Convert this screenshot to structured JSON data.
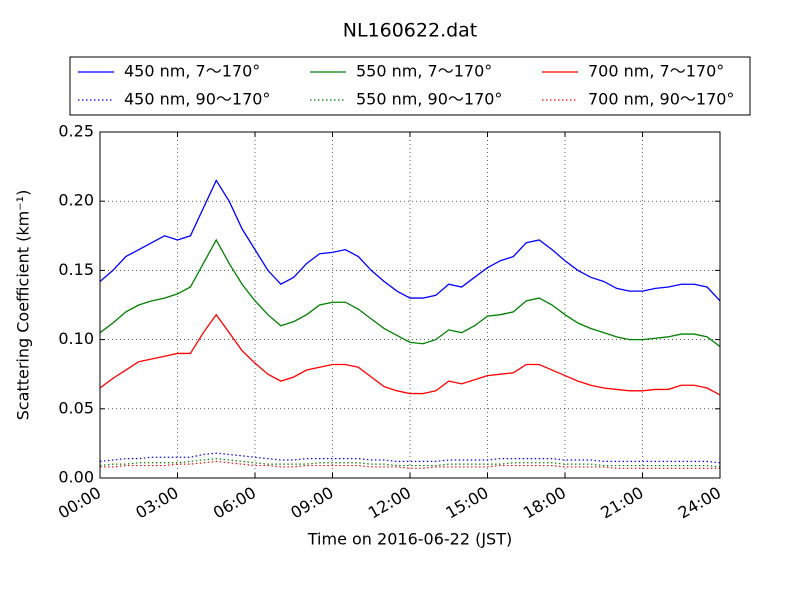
{
  "chart_data": {
    "type": "line",
    "title": "NL160622.dat",
    "xlabel": "Time on 2016-06-22 (JST)",
    "ylabel": "Scattering Coefficient (km⁻¹)",
    "x": [
      0,
      0.5,
      1,
      1.5,
      2,
      2.5,
      3,
      3.5,
      4,
      4.5,
      5,
      5.5,
      6,
      6.5,
      7,
      7.5,
      8,
      8.5,
      9,
      9.5,
      10,
      10.5,
      11,
      11.5,
      12,
      12.5,
      13,
      13.5,
      14,
      14.5,
      15,
      15.5,
      16,
      16.5,
      17,
      17.5,
      18,
      18.5,
      19,
      19.5,
      20,
      20.5,
      21,
      21.5,
      22,
      22.5,
      23,
      23.5,
      24
    ],
    "xlim": [
      0,
      24
    ],
    "xticks": [
      {
        "value": 0,
        "label": "00:00"
      },
      {
        "value": 3,
        "label": "03:00"
      },
      {
        "value": 6,
        "label": "06:00"
      },
      {
        "value": 9,
        "label": "09:00"
      },
      {
        "value": 12,
        "label": "12:00"
      },
      {
        "value": 15,
        "label": "15:00"
      },
      {
        "value": 18,
        "label": "18:00"
      },
      {
        "value": 21,
        "label": "21:00"
      },
      {
        "value": 24,
        "label": "24:00"
      }
    ],
    "ylim": [
      0,
      0.25
    ],
    "yticks": [
      {
        "value": 0,
        "label": "0.00"
      },
      {
        "value": 0.05,
        "label": "0.05"
      },
      {
        "value": 0.1,
        "label": "0.10"
      },
      {
        "value": 0.15,
        "label": "0.15"
      },
      {
        "value": 0.2,
        "label": "0.20"
      },
      {
        "value": 0.25,
        "label": "0.25"
      }
    ],
    "grid": true,
    "legend": "top",
    "series": [
      {
        "name": "450 nm, 7～170°",
        "color": "#0000ff",
        "style": "solid",
        "values": [
          0.142,
          0.15,
          0.16,
          0.165,
          0.17,
          0.175,
          0.172,
          0.175,
          0.195,
          0.215,
          0.2,
          0.18,
          0.165,
          0.15,
          0.14,
          0.145,
          0.155,
          0.162,
          0.163,
          0.165,
          0.16,
          0.15,
          0.142,
          0.135,
          0.13,
          0.13,
          0.132,
          0.14,
          0.138,
          0.145,
          0.152,
          0.157,
          0.16,
          0.17,
          0.172,
          0.165,
          0.157,
          0.15,
          0.145,
          0.142,
          0.137,
          0.135,
          0.135,
          0.137,
          0.138,
          0.14,
          0.14,
          0.138,
          0.128
        ]
      },
      {
        "name": "550 nm, 7～170°",
        "color": "#008000",
        "style": "solid",
        "values": [
          0.105,
          0.112,
          0.12,
          0.125,
          0.128,
          0.13,
          0.133,
          0.138,
          0.155,
          0.172,
          0.155,
          0.14,
          0.128,
          0.118,
          0.11,
          0.113,
          0.118,
          0.125,
          0.127,
          0.127,
          0.122,
          0.115,
          0.108,
          0.103,
          0.098,
          0.097,
          0.1,
          0.107,
          0.105,
          0.11,
          0.117,
          0.118,
          0.12,
          0.128,
          0.13,
          0.125,
          0.118,
          0.112,
          0.108,
          0.105,
          0.102,
          0.1,
          0.1,
          0.101,
          0.102,
          0.104,
          0.104,
          0.102,
          0.095
        ]
      },
      {
        "name": "700 nm, 7～170°",
        "color": "#ff0000",
        "style": "solid",
        "values": [
          0.065,
          0.072,
          0.078,
          0.084,
          0.086,
          0.088,
          0.09,
          0.09,
          0.105,
          0.118,
          0.105,
          0.092,
          0.083,
          0.075,
          0.07,
          0.073,
          0.078,
          0.08,
          0.082,
          0.082,
          0.08,
          0.073,
          0.066,
          0.063,
          0.061,
          0.061,
          0.063,
          0.07,
          0.068,
          0.071,
          0.074,
          0.075,
          0.076,
          0.082,
          0.082,
          0.078,
          0.074,
          0.07,
          0.067,
          0.065,
          0.064,
          0.063,
          0.063,
          0.064,
          0.064,
          0.067,
          0.067,
          0.065,
          0.06
        ]
      },
      {
        "name": "450 nm, 90～170°",
        "color": "#0000ff",
        "style": "dotted",
        "values": [
          0.012,
          0.013,
          0.014,
          0.014,
          0.015,
          0.015,
          0.015,
          0.015,
          0.017,
          0.018,
          0.017,
          0.016,
          0.015,
          0.014,
          0.013,
          0.013,
          0.014,
          0.014,
          0.014,
          0.014,
          0.014,
          0.013,
          0.013,
          0.012,
          0.012,
          0.012,
          0.012,
          0.013,
          0.013,
          0.013,
          0.013,
          0.014,
          0.014,
          0.014,
          0.014,
          0.014,
          0.013,
          0.013,
          0.013,
          0.012,
          0.012,
          0.012,
          0.012,
          0.012,
          0.012,
          0.012,
          0.012,
          0.012,
          0.011
        ]
      },
      {
        "name": "550 nm, 90～170°",
        "color": "#008000",
        "style": "dotted",
        "values": [
          0.009,
          0.01,
          0.01,
          0.011,
          0.011,
          0.011,
          0.011,
          0.012,
          0.013,
          0.014,
          0.013,
          0.012,
          0.011,
          0.01,
          0.01,
          0.01,
          0.01,
          0.011,
          0.011,
          0.011,
          0.011,
          0.01,
          0.01,
          0.009,
          0.009,
          0.009,
          0.009,
          0.01,
          0.01,
          0.01,
          0.01,
          0.01,
          0.011,
          0.011,
          0.011,
          0.011,
          0.01,
          0.01,
          0.01,
          0.009,
          0.009,
          0.009,
          0.009,
          0.009,
          0.009,
          0.009,
          0.009,
          0.009,
          0.008
        ]
      },
      {
        "name": "700 nm, 90～170°",
        "color": "#ff0000",
        "style": "dotted",
        "values": [
          0.008,
          0.008,
          0.009,
          0.009,
          0.009,
          0.009,
          0.01,
          0.01,
          0.011,
          0.012,
          0.011,
          0.01,
          0.009,
          0.009,
          0.008,
          0.008,
          0.009,
          0.009,
          0.009,
          0.009,
          0.009,
          0.008,
          0.008,
          0.008,
          0.007,
          0.007,
          0.008,
          0.008,
          0.008,
          0.008,
          0.008,
          0.009,
          0.009,
          0.009,
          0.009,
          0.009,
          0.008,
          0.008,
          0.008,
          0.008,
          0.007,
          0.007,
          0.007,
          0.007,
          0.007,
          0.007,
          0.007,
          0.007,
          0.007
        ]
      }
    ]
  }
}
